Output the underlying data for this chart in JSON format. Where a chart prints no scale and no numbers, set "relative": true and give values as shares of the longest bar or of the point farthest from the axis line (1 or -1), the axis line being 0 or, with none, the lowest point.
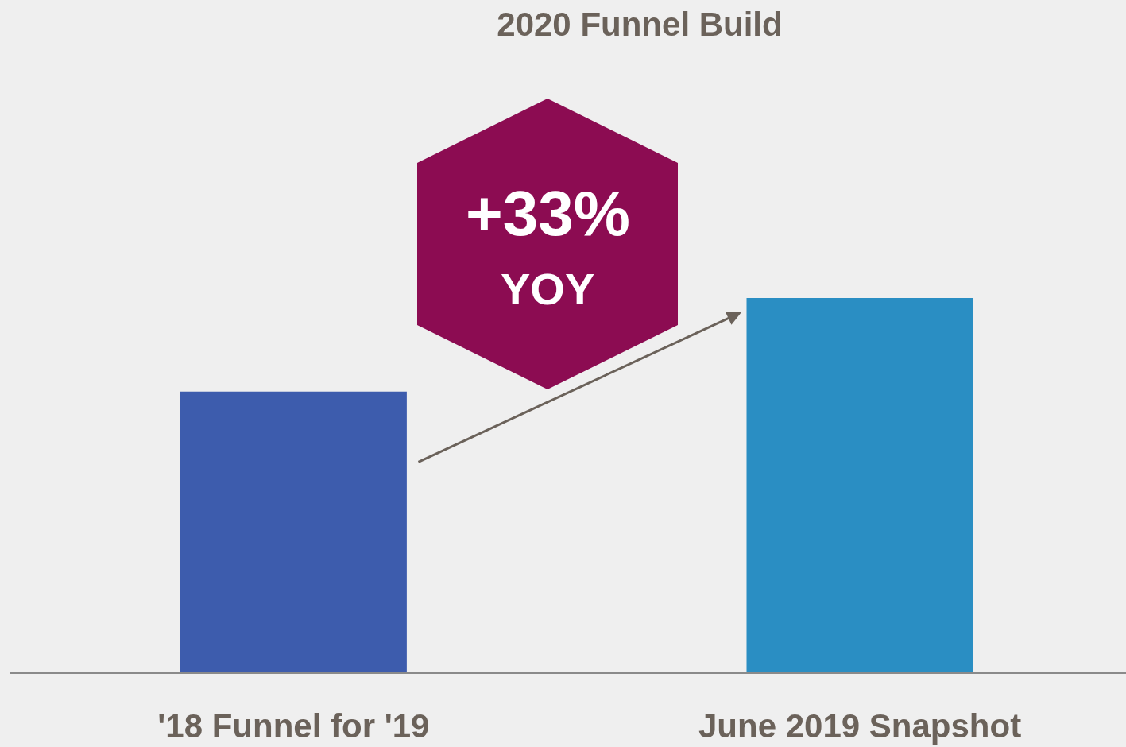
{
  "chart_data": {
    "type": "bar",
    "title": "2020 Funnel Build",
    "relative": true,
    "categories": [
      "'18 Funnel for '19",
      "June 2019 Snapshot"
    ],
    "values": [
      0.75,
      1
    ],
    "colors": [
      "#3d5cad",
      "#2a8ec3"
    ],
    "annotations": [
      "+33%",
      "YOY"
    ]
  }
}
